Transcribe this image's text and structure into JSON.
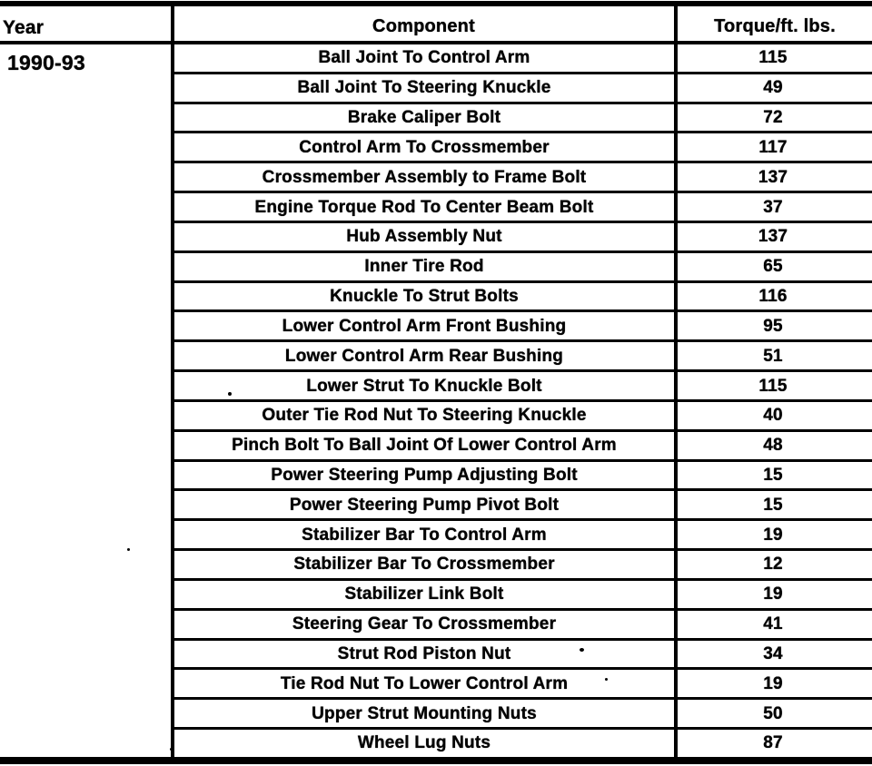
{
  "table": {
    "col_headers": {
      "year": "Year",
      "component": "Component",
      "torque": "Torque/ft. lbs."
    },
    "year_value": "1990-93",
    "rows": [
      {
        "component": "Ball Joint To Control Arm",
        "torque": "115"
      },
      {
        "component": "Ball Joint To Steering Knuckle",
        "torque": "49"
      },
      {
        "component": "Brake Caliper Bolt",
        "torque": "72"
      },
      {
        "component": "Control Arm To Crossmember",
        "torque": "117"
      },
      {
        "component": "Crossmember Assembly to Frame Bolt",
        "torque": "137"
      },
      {
        "component": "Engine Torque Rod To Center Beam Bolt",
        "torque": "37"
      },
      {
        "component": "Hub Assembly Nut",
        "torque": "137"
      },
      {
        "component": "Inner Tire Rod",
        "torque": "65"
      },
      {
        "component": "Knuckle To Strut Bolts",
        "torque": "116"
      },
      {
        "component": "Lower Control Arm Front Bushing",
        "torque": "95"
      },
      {
        "component": "Lower Control Arm Rear Bushing",
        "torque": "51"
      },
      {
        "component": "Lower Strut To Knuckle Bolt",
        "torque": "115"
      },
      {
        "component": "Outer Tie Rod Nut To Steering Knuckle",
        "torque": "40"
      },
      {
        "component": "Pinch Bolt To Ball Joint Of Lower Control Arm",
        "torque": "48"
      },
      {
        "component": "Power Steering Pump Adjusting Bolt",
        "torque": "15"
      },
      {
        "component": "Power Steering Pump Pivot Bolt",
        "torque": "15"
      },
      {
        "component": "Stabilizer Bar To Control Arm",
        "torque": "19"
      },
      {
        "component": "Stabilizer Bar To Crossmember",
        "torque": "12"
      },
      {
        "component": "Stabilizer Link Bolt",
        "torque": "19"
      },
      {
        "component": "Steering Gear To Crossmember",
        "torque": "41"
      },
      {
        "component": "Strut Rod Piston Nut",
        "torque": "34"
      },
      {
        "component": "Tie Rod Nut To Lower Control Arm",
        "torque": "19"
      },
      {
        "component": "Upper Strut Mounting Nuts",
        "torque": "50"
      },
      {
        "component": "Wheel Lug Nuts",
        "torque": "87"
      }
    ],
    "ink_color": "#000000",
    "paper_color": "#ffffff"
  }
}
